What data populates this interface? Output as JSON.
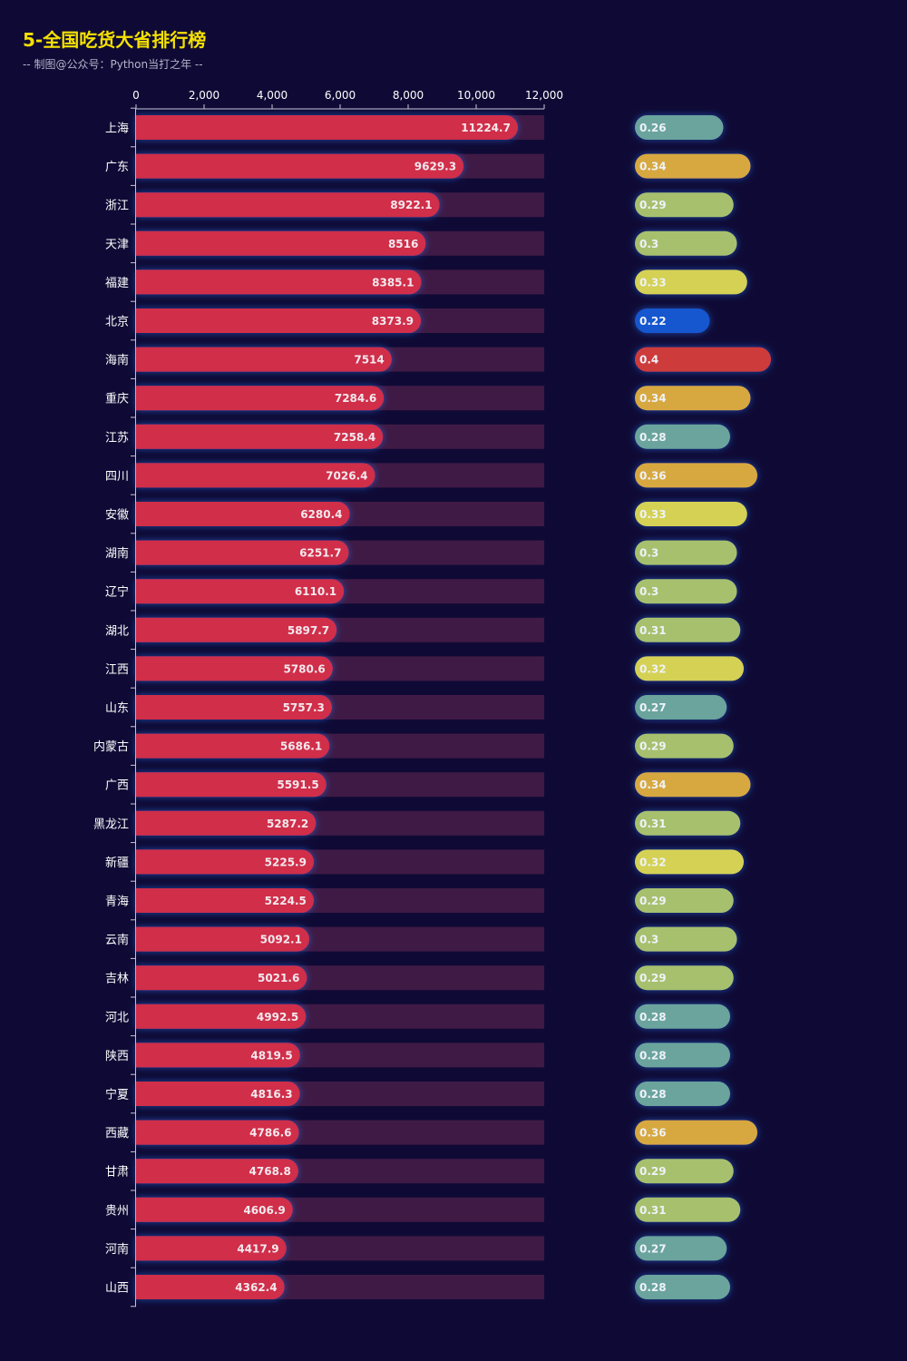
{
  "title": "5-全国吃货大省排行榜",
  "subtitle": "-- 制图@公众号：Python当打之年 --",
  "chart_data": {
    "type": "bar",
    "orientation": "horizontal",
    "x_ticks": [
      "0",
      "2,000",
      "4,000",
      "6,000",
      "8,000",
      "10,000",
      "12,000"
    ],
    "xlim": [
      0,
      12000
    ],
    "categories": [
      "上海",
      "广东",
      "浙江",
      "天津",
      "福建",
      "北京",
      "海南",
      "重庆",
      "江苏",
      "四川",
      "安徽",
      "湖南",
      "辽宁",
      "湖北",
      "江西",
      "山东",
      "内蒙古",
      "广西",
      "黑龙江",
      "新疆",
      "青海",
      "云南",
      "吉林",
      "河北",
      "陕西",
      "宁夏",
      "西藏",
      "甘肃",
      "贵州",
      "河南",
      "山西"
    ],
    "values": [
      11224.7,
      9629.3,
      8922.1,
      8516,
      8385.1,
      8373.9,
      7514,
      7284.6,
      7258.4,
      7026.4,
      6280.4,
      6251.7,
      6110.1,
      5897.7,
      5780.6,
      5757.3,
      5686.1,
      5591.5,
      5287.2,
      5225.9,
      5224.5,
      5092.1,
      5021.6,
      4992.5,
      4819.5,
      4816.3,
      4786.6,
      4768.8,
      4606.9,
      4417.9,
      4362.4
    ],
    "labels": [
      "11224.7",
      "9629.3",
      "8922.1",
      "8516",
      "8385.1",
      "8373.9",
      "7514",
      "7284.6",
      "7258.4",
      "7026.4",
      "6280.4",
      "6251.7",
      "6110.1",
      "5897.7",
      "5780.6",
      "5757.3",
      "5686.1",
      "5591.5",
      "5287.2",
      "5225.9",
      "5224.5",
      "5092.1",
      "5021.6",
      "4992.5",
      "4819.5",
      "4816.3",
      "4786.6",
      "4768.8",
      "4606.9",
      "4417.9",
      "4362.4"
    ],
    "ratios": [
      0.26,
      0.34,
      0.29,
      0.3,
      0.33,
      0.22,
      0.4,
      0.34,
      0.28,
      0.36,
      0.33,
      0.3,
      0.3,
      0.31,
      0.32,
      0.27,
      0.29,
      0.34,
      0.31,
      0.32,
      0.29,
      0.3,
      0.29,
      0.28,
      0.28,
      0.28,
      0.36,
      0.29,
      0.31,
      0.27,
      0.28
    ],
    "ratio_labels": [
      "0.26",
      "0.34",
      "0.29",
      "0.3",
      "0.33",
      "0.22",
      "0.4",
      "0.34",
      "0.28",
      "0.36",
      "0.33",
      "0.3",
      "0.3",
      "0.31",
      "0.32",
      "0.27",
      "0.29",
      "0.34",
      "0.31",
      "0.32",
      "0.29",
      "0.3",
      "0.29",
      "0.28",
      "0.28",
      "0.28",
      "0.36",
      "0.29",
      "0.31",
      "0.27",
      "0.28"
    ],
    "colors": {
      "background": "#0f0a35",
      "bar": "#d02d4a",
      "bar_track": "#3f1a45",
      "axis": "#c9c6d6",
      "ratio_scale": [
        "#1556cf",
        "#2b8fd1",
        "#6aa49d",
        "#a7c06e",
        "#d4d154",
        "#d7a83f",
        "#d0712e",
        "#cd3a3b"
      ]
    }
  }
}
